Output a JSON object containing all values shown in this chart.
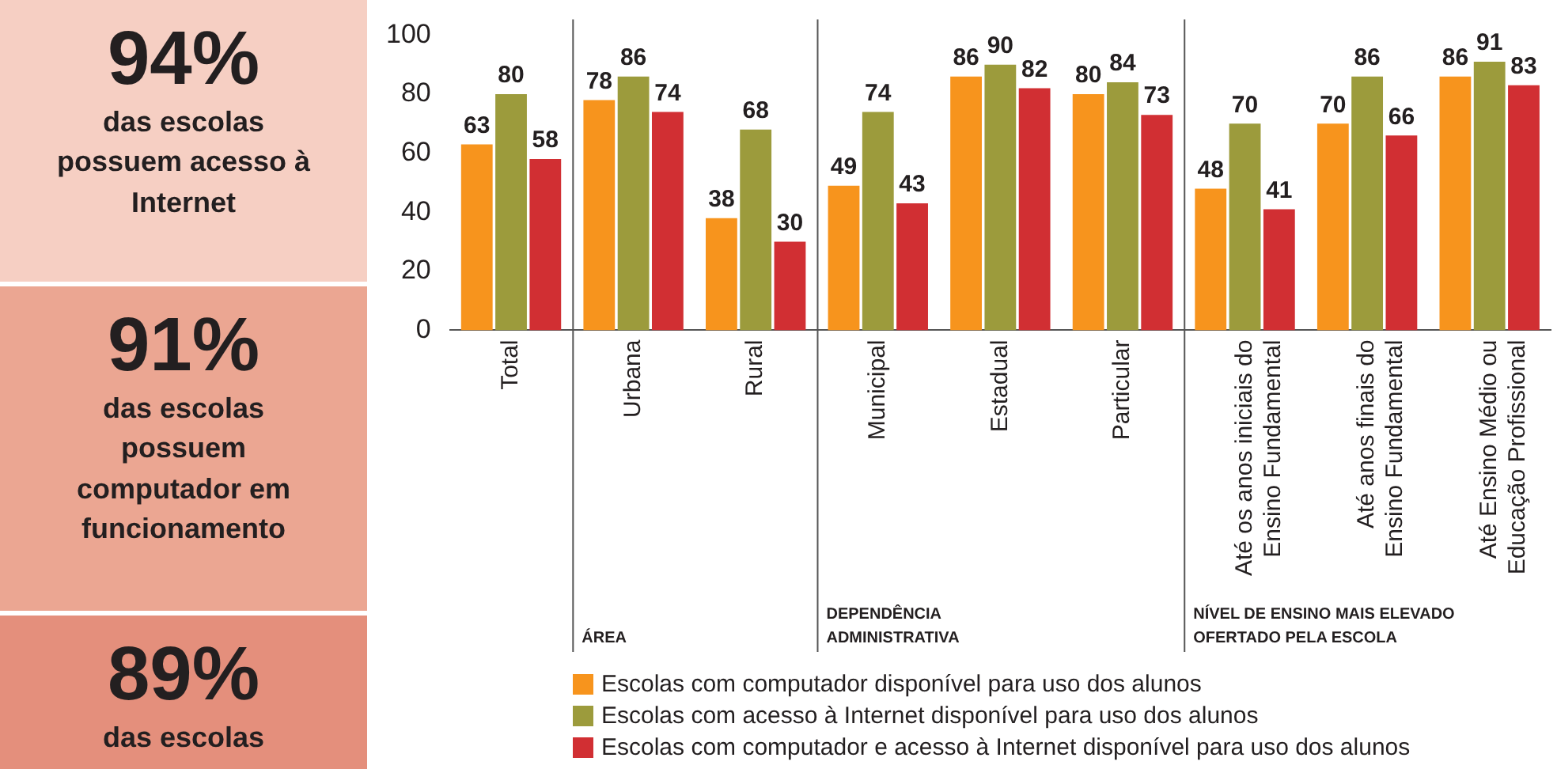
{
  "chart_data": [
    {
      "type": "other",
      "annotations": [
        "94%",
        "das escolas possuem acesso à Internet",
        "91%",
        "das escolas possuem computador em funcionamento",
        "89%",
        "das escolas"
      ]
    },
    {
      "type": "bar",
      "categories": [
        "Total",
        "Urbana",
        "Rural",
        "Municipal",
        "Estadual",
        "Particular",
        "Até os anos iniciais do\nEnsino Fundamental",
        "Até anos finais do\nEnsino Fundamental",
        "Até Ensino Médio ou\nEducação Profissional"
      ],
      "series": [
        {
          "name": "Escolas com computador disponível para uso dos alunos",
          "color": "#f7941d",
          "values": [
            63,
            78,
            38,
            49,
            86,
            80,
            48,
            70,
            86
          ]
        },
        {
          "name": "Escolas com acesso à Internet disponível para uso dos alunos",
          "color": "#9c9b3c",
          "values": [
            80,
            86,
            68,
            74,
            90,
            84,
            70,
            86,
            91
          ]
        },
        {
          "name": "Escolas com computador e acesso à Internet disponível para uso dos alunos",
          "color": "#d12f33",
          "values": [
            58,
            74,
            30,
            43,
            82,
            73,
            41,
            66,
            83
          ]
        }
      ],
      "ylim": [
        0,
        100
      ],
      "yticks": [
        0,
        20,
        40,
        60,
        80,
        100
      ],
      "grid": false,
      "legend": "bottom",
      "data_labels": true,
      "annotations": [
        "ÁREA",
        "DEPENDÊNCIA\nADMINISTRATIVA",
        "NÍVEL DE ENSINO MAIS ELEVADO\nOFERTADO PELA ESCOLA"
      ]
    }
  ]
}
